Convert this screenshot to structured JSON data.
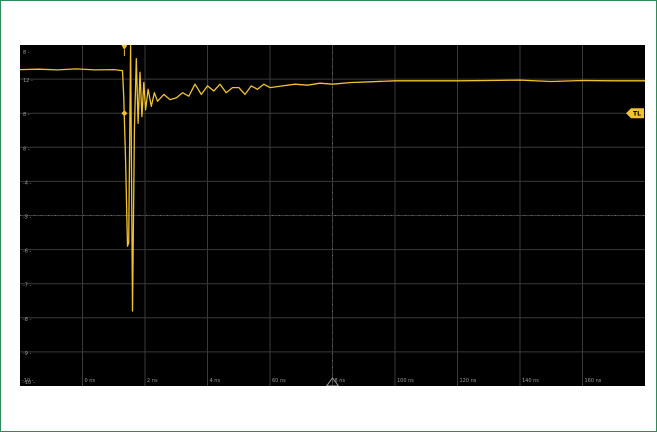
{
  "chart_data": {
    "type": "line",
    "title": "",
    "xlabel": "",
    "ylabel": "",
    "grid": true,
    "xlim": [
      0,
      10
    ],
    "ylim": [
      -5,
      5
    ],
    "x_major_divisions": 10,
    "y_major_divisions": 10,
    "y_tick_labels": [
      "8 -",
      "12 -",
      "8 -",
      "8 -",
      "-4 -",
      "-5 -",
      "-6 -",
      "-7 -",
      "-8 -",
      "-9 -",
      "-10 -"
    ],
    "x_tick_labels": [
      "-10 -",
      "0 ns",
      "2 ns",
      "4 ns",
      "60 ns",
      "8 ns",
      "100 ns",
      "120 ns",
      "140 ns",
      "160 ns",
      "180 ns"
    ],
    "trigger_level_label": "TL",
    "trigger_level_y": 3.0,
    "trigger_time_x": 1.67,
    "series": [
      {
        "color": "#f2c12e",
        "x": [
          0,
          0.3,
          0.6,
          0.9,
          1.2,
          1.5,
          1.64,
          1.66,
          1.69,
          1.72,
          1.74,
          1.77,
          1.8,
          1.83,
          1.86,
          1.89,
          1.92,
          1.95,
          1.98,
          2.01,
          2.05,
          2.1,
          2.15,
          2.2,
          2.3,
          2.4,
          2.5,
          2.6,
          2.7,
          2.8,
          2.9,
          3.0,
          3.1,
          3.2,
          3.3,
          3.4,
          3.5,
          3.6,
          3.7,
          3.8,
          3.9,
          4.0,
          4.2,
          4.4,
          4.6,
          4.8,
          5.0,
          5.3,
          5.6,
          6.0,
          6.5,
          7.0,
          7.5,
          8.0,
          8.5,
          9.0,
          9.5,
          10.0
        ],
        "y": [
          4.28,
          4.29,
          4.27,
          4.3,
          4.27,
          4.28,
          4.25,
          3.5,
          1.6,
          -0.9,
          -0.8,
          5.0,
          -2.8,
          2.5,
          4.6,
          2.7,
          4.2,
          2.9,
          3.9,
          3.1,
          3.7,
          3.2,
          3.6,
          3.35,
          3.55,
          3.4,
          3.45,
          3.6,
          3.5,
          3.85,
          3.55,
          3.8,
          3.65,
          3.85,
          3.6,
          3.75,
          3.75,
          3.55,
          3.8,
          3.7,
          3.85,
          3.75,
          3.8,
          3.85,
          3.82,
          3.88,
          3.85,
          3.9,
          3.92,
          3.95,
          3.95,
          3.95,
          3.96,
          3.97,
          3.93,
          3.96,
          3.95,
          3.95
        ]
      }
    ]
  }
}
